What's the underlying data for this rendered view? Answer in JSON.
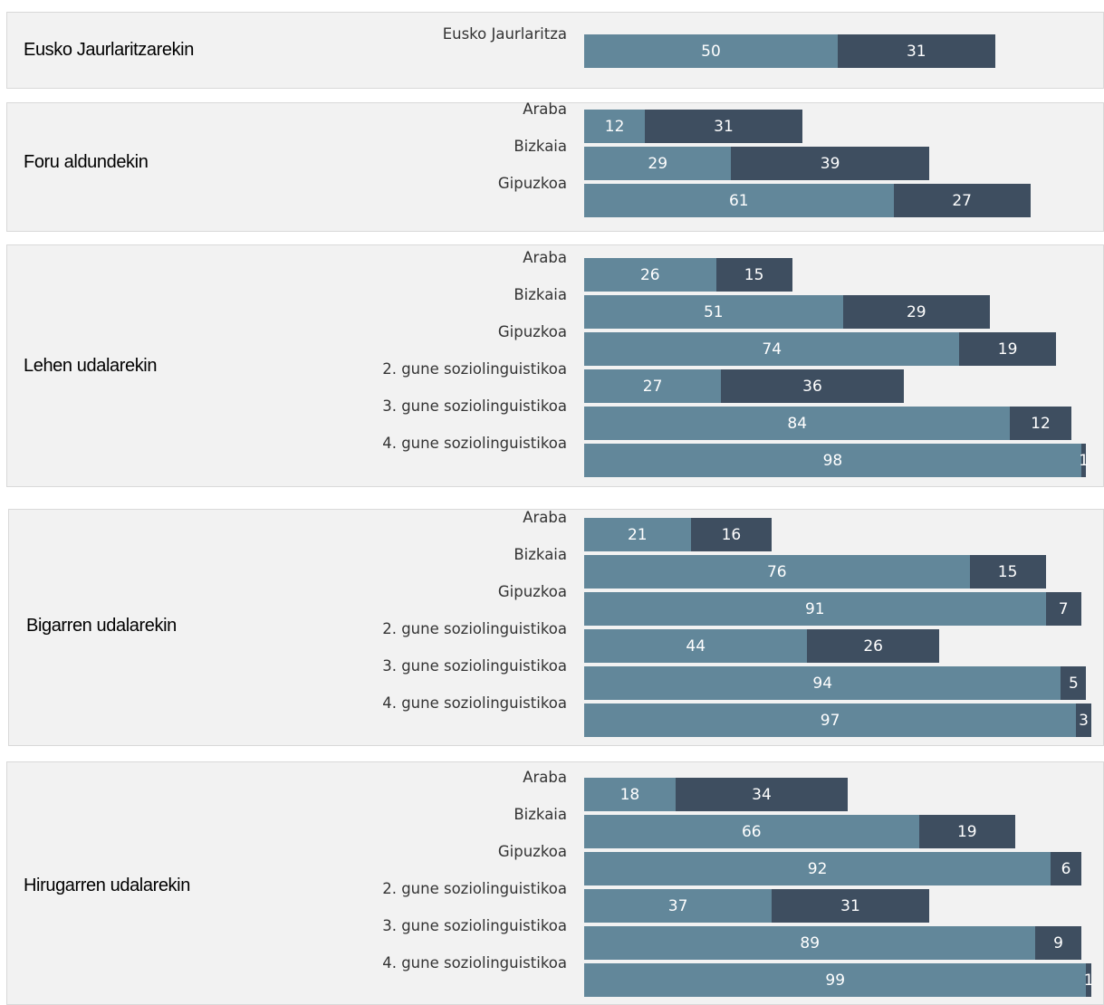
{
  "colors": {
    "series_1": "#62879a",
    "series_2": "#3e4e60",
    "panel_bg": "#f2f2f2",
    "panel_border": "#d9d9d9"
  },
  "chart_data": {
    "type": "bar",
    "orientation": "horizontal",
    "stacked": true,
    "series": [
      {
        "color": "#62879a"
      },
      {
        "color": "#3e4e60"
      }
    ],
    "xlim": [
      0,
      100
    ],
    "groups": [
      {
        "label": "Eusko Jaurlaritzarekin",
        "rows": [
          {
            "label": "Eusko Jaurlaritza",
            "values": [
              50,
              31
            ]
          }
        ]
      },
      {
        "label": "Foru aldundekin",
        "rows": [
          {
            "label": "Araba",
            "values": [
              12,
              31
            ]
          },
          {
            "label": "Bizkaia",
            "values": [
              29,
              39
            ]
          },
          {
            "label": "Gipuzkoa",
            "values": [
              61,
              27
            ]
          }
        ]
      },
      {
        "label": "Lehen udalarekin",
        "rows": [
          {
            "label": "Araba",
            "values": [
              26,
              15
            ]
          },
          {
            "label": "Bizkaia",
            "values": [
              51,
              29
            ]
          },
          {
            "label": "Gipuzkoa",
            "values": [
              74,
              19
            ]
          },
          {
            "label": "2. gune soziolinguistikoa",
            "values": [
              27,
              36
            ]
          },
          {
            "label": "3. gune soziolinguistikoa",
            "values": [
              84,
              12
            ]
          },
          {
            "label": "4. gune soziolinguistikoa",
            "values": [
              98,
              1
            ]
          }
        ]
      },
      {
        "label": "Bigarren udalarekin",
        "rows": [
          {
            "label": "Araba",
            "values": [
              21,
              16
            ]
          },
          {
            "label": "Bizkaia",
            "values": [
              76,
              15
            ]
          },
          {
            "label": "Gipuzkoa",
            "values": [
              91,
              7
            ]
          },
          {
            "label": "2. gune soziolinguistikoa",
            "values": [
              44,
              26
            ]
          },
          {
            "label": "3. gune soziolinguistikoa",
            "values": [
              94,
              5
            ]
          },
          {
            "label": "4. gune soziolinguistikoa",
            "values": [
              97,
              3
            ]
          }
        ]
      },
      {
        "label": "Hirugarren udalarekin",
        "rows": [
          {
            "label": "Araba",
            "values": [
              18,
              34
            ]
          },
          {
            "label": "Bizkaia",
            "values": [
              66,
              19
            ]
          },
          {
            "label": "Gipuzkoa",
            "values": [
              92,
              6
            ]
          },
          {
            "label": "2. gune soziolinguistikoa",
            "values": [
              37,
              31
            ]
          },
          {
            "label": "3. gune soziolinguistikoa",
            "values": [
              89,
              9
            ]
          },
          {
            "label": "4. gune soziolinguistikoa",
            "values": [
              99,
              1
            ]
          }
        ]
      }
    ]
  }
}
